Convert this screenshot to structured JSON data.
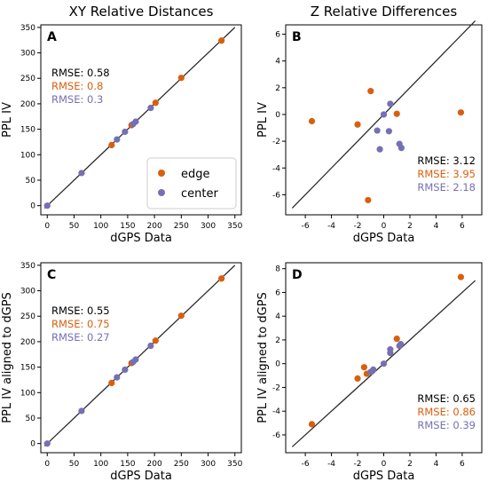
{
  "legend": {
    "entries": [
      {
        "label": "edge",
        "color": "#d95f0e"
      },
      {
        "label": "center",
        "color": "#7570b3"
      }
    ]
  },
  "colors": {
    "edge": "#d95f0e",
    "center": "#7570b3",
    "line": "#2b2b2b",
    "axis": "#000000"
  },
  "chart_data": [
    {
      "id": "A",
      "type": "scatter",
      "title": "XY Relative Distances",
      "panel_label": "A",
      "xlabel": "dGPS Data",
      "ylabel": "PPL IV",
      "xlim": [
        -12,
        362
      ],
      "ylim": [
        -18,
        355
      ],
      "xticks": [
        0,
        50,
        100,
        150,
        200,
        250,
        300,
        350
      ],
      "yticks": [
        0,
        50,
        100,
        150,
        200,
        250,
        300,
        350
      ],
      "identity_line": [
        -5,
        350
      ],
      "rmse": [
        {
          "text": "RMSE: 0.58",
          "series": "all"
        },
        {
          "text": "RMSE: 0.8",
          "series": "edge"
        },
        {
          "text": "RMSE: 0.3",
          "series": "center"
        }
      ],
      "rmse_position": "upper-left",
      "legend": true,
      "series": [
        {
          "name": "edge",
          "points": [
            [
              120,
              119
            ],
            [
              157,
              158
            ],
            [
              202,
              202
            ],
            [
              250,
              251
            ],
            [
              325,
              324
            ]
          ]
        },
        {
          "name": "center",
          "points": [
            [
              0,
              0
            ],
            [
              64,
              64
            ],
            [
              130,
              130
            ],
            [
              145,
              145
            ],
            [
              160,
              160
            ],
            [
              165,
              165
            ],
            [
              193,
              192
            ]
          ]
        }
      ]
    },
    {
      "id": "B",
      "type": "scatter",
      "title": "Z Relative Differences",
      "panel_label": "B",
      "xlabel": "dGPS Data",
      "ylabel": "PPL IV",
      "xlim": [
        -7.5,
        7.5
      ],
      "ylim": [
        -7.5,
        6.7
      ],
      "xticks": [
        -6,
        -4,
        -2,
        0,
        2,
        4,
        6
      ],
      "yticks": [
        -6,
        -4,
        -2,
        0,
        2,
        4,
        6
      ],
      "identity_line": [
        -7,
        7
      ],
      "rmse": [
        {
          "text": "RMSE: 3.12",
          "series": "all"
        },
        {
          "text": "RMSE: 3.95",
          "series": "edge"
        },
        {
          "text": "RMSE: 2.18",
          "series": "center"
        }
      ],
      "rmse_position": "lower-right",
      "legend": false,
      "series": [
        {
          "name": "edge",
          "points": [
            [
              -5.5,
              -0.5
            ],
            [
              -2.0,
              -0.75
            ],
            [
              -1.0,
              1.75
            ],
            [
              1.0,
              0.05
            ],
            [
              5.9,
              0.15
            ],
            [
              -1.2,
              -6.4
            ]
          ]
        },
        {
          "name": "center",
          "points": [
            [
              0.0,
              0.0
            ],
            [
              -0.5,
              -1.2
            ],
            [
              -0.3,
              -2.6
            ],
            [
              0.4,
              -1.25
            ],
            [
              0.5,
              0.8
            ],
            [
              1.2,
              -2.2
            ],
            [
              1.35,
              -2.5
            ]
          ]
        }
      ]
    },
    {
      "id": "C",
      "type": "scatter",
      "title": "",
      "panel_label": "C",
      "xlabel": "dGPS Data",
      "ylabel": "PPL IV aligned to dGPS",
      "xlim": [
        -12,
        362
      ],
      "ylim": [
        -18,
        355
      ],
      "xticks": [
        0,
        50,
        100,
        150,
        200,
        250,
        300,
        350
      ],
      "yticks": [
        0,
        50,
        100,
        150,
        200,
        250,
        300,
        350
      ],
      "identity_line": [
        -5,
        350
      ],
      "rmse": [
        {
          "text": "RMSE: 0.55",
          "series": "all"
        },
        {
          "text": "RMSE: 0.75",
          "series": "edge"
        },
        {
          "text": "RMSE: 0.27",
          "series": "center"
        }
      ],
      "rmse_position": "upper-left",
      "legend": false,
      "series": [
        {
          "name": "edge",
          "points": [
            [
              120,
              119
            ],
            [
              157,
              158
            ],
            [
              202,
              202
            ],
            [
              250,
              251
            ],
            [
              325,
              324
            ]
          ]
        },
        {
          "name": "center",
          "points": [
            [
              0,
              0
            ],
            [
              64,
              64
            ],
            [
              130,
              130
            ],
            [
              145,
              145
            ],
            [
              160,
              160
            ],
            [
              165,
              165
            ],
            [
              193,
              192
            ]
          ]
        }
      ]
    },
    {
      "id": "D",
      "type": "scatter",
      "title": "",
      "panel_label": "D",
      "xlabel": "dGPS Data",
      "ylabel": "PPL IV aligned to dGPS",
      "xlim": [
        -7.5,
        7.5
      ],
      "ylim": [
        -7.5,
        8.5
      ],
      "xticks": [
        -6,
        -4,
        -2,
        0,
        2,
        4,
        6
      ],
      "yticks": [
        -6,
        -4,
        -2,
        0,
        2,
        4,
        6,
        8
      ],
      "identity_line": [
        -7,
        7
      ],
      "rmse": [
        {
          "text": "RMSE: 0.65",
          "series": "all"
        },
        {
          "text": "RMSE: 0.86",
          "series": "edge"
        },
        {
          "text": "RMSE: 0.39",
          "series": "center"
        }
      ],
      "rmse_position": "lower-right",
      "legend": false,
      "series": [
        {
          "name": "edge",
          "points": [
            [
              -5.5,
              -5.1
            ],
            [
              -2.0,
              -1.25
            ],
            [
              -1.5,
              -0.3
            ],
            [
              -1.3,
              -0.85
            ],
            [
              1.0,
              2.1
            ],
            [
              5.9,
              7.3
            ]
          ]
        },
        {
          "name": "center",
          "points": [
            [
              0.0,
              0.0
            ],
            [
              -0.8,
              -0.5
            ],
            [
              -1.0,
              -0.7
            ],
            [
              0.5,
              0.9
            ],
            [
              0.5,
              1.2
            ],
            [
              1.2,
              1.5
            ],
            [
              1.3,
              1.65
            ]
          ]
        }
      ]
    }
  ]
}
